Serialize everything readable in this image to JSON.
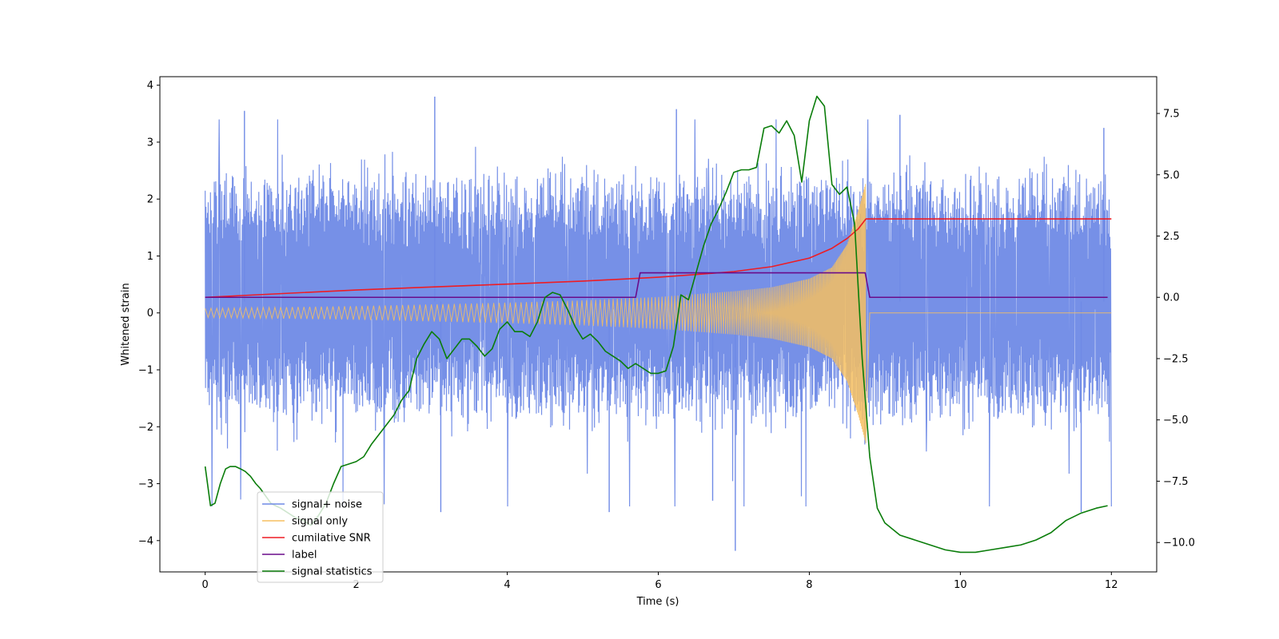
{
  "chart_data": {
    "type": "line",
    "title": "",
    "xlabel": "Time (s)",
    "ylabel_left": "Whitened strain",
    "ylabel_right": "",
    "xlim": [
      -0.6,
      12.6
    ],
    "ylim_left": [
      -4.55,
      4.15
    ],
    "ylim_right": [
      -11.2,
      9.0
    ],
    "x_ticks": [
      0,
      2,
      4,
      6,
      8,
      10,
      12
    ],
    "x_tick_labels": [
      "0",
      "2",
      "4",
      "6",
      "8",
      "10",
      "12"
    ],
    "y_left_ticks": [
      -4,
      -3,
      -2,
      -1,
      0,
      1,
      2,
      3,
      4
    ],
    "y_left_tick_labels": [
      "−4",
      "−3",
      "−2",
      "−1",
      "0",
      "1",
      "2",
      "3",
      "4"
    ],
    "y_right_ticks": [
      -10,
      -7.5,
      -5,
      -2.5,
      0,
      2.5,
      5,
      7.5
    ],
    "y_right_tick_labels": [
      "−10.0",
      "−7.5",
      "−5.0",
      "−2.5",
      "0.0",
      "2.5",
      "5.0",
      "7.5"
    ],
    "grid": false,
    "legend_position": "lower-left",
    "series": [
      {
        "name": "signal+ noise",
        "axis": "left",
        "color": "#6f8ae6",
        "style": "noise-band",
        "x_range": [
          0,
          12
        ],
        "typical_range": [
          -1.75,
          2.3
        ],
        "peaks_high": [
          [
            0.52,
            3.55
          ],
          [
            3.04,
            3.8
          ],
          [
            6.24,
            3.58
          ],
          [
            9.2,
            3.48
          ],
          [
            11.9,
            3.25
          ]
        ],
        "peaks_low": [
          [
            7.02,
            -4.18
          ],
          [
            3.12,
            -3.5
          ],
          [
            5.35,
            -3.5
          ],
          [
            11.6,
            -3.5
          ],
          [
            6.72,
            -3.3
          ]
        ]
      },
      {
        "name": "signal only",
        "axis": "left",
        "color": "#f6bf60",
        "style": "chirp",
        "x": [
          0,
          1,
          2,
          3,
          4,
          5,
          6,
          7,
          7.5,
          8,
          8.3,
          8.5,
          8.65,
          8.75,
          8.8,
          12
        ],
        "y": [
          0.08,
          0.1,
          0.12,
          0.15,
          0.18,
          0.22,
          0.28,
          0.38,
          0.45,
          0.6,
          0.8,
          1.2,
          1.8,
          2.3,
          0.0,
          0.0
        ]
      },
      {
        "name": "cumilative SNR",
        "axis": "right",
        "color": "#ee1c24",
        "x": [
          0,
          1,
          2,
          3,
          4,
          5,
          6,
          6.5,
          7,
          7.5,
          8,
          8.3,
          8.5,
          8.65,
          8.75,
          8.8,
          12
        ],
        "y": [
          0.0,
          0.15,
          0.3,
          0.42,
          0.54,
          0.66,
          0.82,
          0.93,
          1.05,
          1.25,
          1.6,
          2.0,
          2.4,
          2.8,
          3.2,
          3.2,
          3.2
        ]
      },
      {
        "name": "label",
        "axis": "right",
        "color": "#6a0b8a",
        "x": [
          0,
          5.7,
          5.76,
          8.74,
          8.8,
          11.95
        ],
        "y": [
          0,
          0,
          1,
          1,
          0,
          0
        ]
      },
      {
        "name": "signal statistics",
        "axis": "right",
        "color": "#0a7d0a",
        "x": [
          0,
          0.07,
          0.13,
          0.2,
          0.27,
          0.33,
          0.4,
          0.47,
          0.53,
          0.6,
          0.67,
          0.73,
          0.8,
          0.87,
          0.93,
          1.0,
          1.1,
          1.2,
          1.3,
          1.4,
          1.5,
          1.6,
          1.7,
          1.8,
          1.9,
          2.0,
          2.1,
          2.2,
          2.3,
          2.4,
          2.5,
          2.6,
          2.7,
          2.8,
          2.9,
          3.0,
          3.1,
          3.2,
          3.3,
          3.4,
          3.5,
          3.6,
          3.7,
          3.8,
          3.9,
          4.0,
          4.1,
          4.2,
          4.3,
          4.4,
          4.5,
          4.6,
          4.7,
          4.8,
          4.9,
          5.0,
          5.1,
          5.2,
          5.3,
          5.4,
          5.5,
          5.6,
          5.7,
          5.8,
          5.9,
          6.0,
          6.1,
          6.2,
          6.3,
          6.4,
          6.5,
          6.6,
          6.7,
          6.8,
          6.9,
          7.0,
          7.1,
          7.2,
          7.3,
          7.4,
          7.5,
          7.6,
          7.7,
          7.8,
          7.9,
          8.0,
          8.1,
          8.2,
          8.3,
          8.4,
          8.5,
          8.6,
          8.7,
          8.8,
          8.9,
          9.0,
          9.2,
          9.4,
          9.6,
          9.8,
          10.0,
          10.2,
          10.4,
          10.6,
          10.8,
          11.0,
          11.2,
          11.4,
          11.6,
          11.8,
          11.95
        ],
        "y": [
          -6.9,
          -8.5,
          -8.4,
          -7.6,
          -7.0,
          -6.9,
          -6.9,
          -7.0,
          -7.1,
          -7.3,
          -7.6,
          -7.8,
          -8.1,
          -8.4,
          -8.5,
          -8.6,
          -8.8,
          -9.0,
          -9.1,
          -9.3,
          -8.9,
          -8.4,
          -7.6,
          -6.9,
          -6.8,
          -6.7,
          -6.5,
          -6.0,
          -5.6,
          -5.2,
          -4.8,
          -4.2,
          -3.8,
          -2.5,
          -1.9,
          -1.4,
          -1.7,
          -2.5,
          -2.1,
          -1.7,
          -1.7,
          -2.0,
          -2.4,
          -2.1,
          -1.3,
          -1.0,
          -1.4,
          -1.4,
          -1.6,
          -1.0,
          0.0,
          0.2,
          0.1,
          -0.5,
          -1.2,
          -1.7,
          -1.5,
          -1.8,
          -2.2,
          -2.4,
          -2.6,
          -2.9,
          -2.7,
          -2.9,
          -3.1,
          -3.1,
          -3.0,
          -2.0,
          0.1,
          -0.1,
          1.0,
          2.1,
          3.0,
          3.6,
          4.3,
          5.1,
          5.2,
          5.2,
          5.3,
          6.9,
          7.0,
          6.7,
          7.2,
          6.6,
          4.7,
          7.2,
          8.2,
          7.8,
          4.6,
          4.2,
          4.5,
          3.0,
          -2.5,
          -6.5,
          -8.6,
          -9.2,
          -9.7,
          -9.9,
          -10.1,
          -10.3,
          -10.4,
          -10.4,
          -10.3,
          -10.2,
          -10.1,
          -9.9,
          -9.6,
          -9.1,
          -8.8,
          -8.6,
          -8.5
        ]
      }
    ]
  }
}
